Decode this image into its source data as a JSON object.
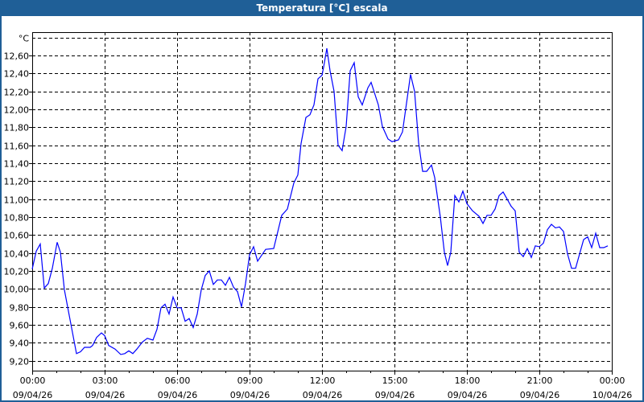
{
  "window": {
    "title": "Temperatura [°C] escala"
  },
  "colors": {
    "titlebar": "#1f5f97",
    "series": "#0000ff",
    "grid": "#000000"
  },
  "chart_data": {
    "type": "line",
    "title": "Temperatura [°C] escala",
    "ylabel": "°C",
    "ylim": [
      9.09,
      12.86
    ],
    "yticks": [
      "9,20",
      "9,40",
      "9,60",
      "9,80",
      "10,00",
      "10,20",
      "10,40",
      "10,60",
      "10,80",
      "11,00",
      "11,20",
      "11,40",
      "11,60",
      "11,80",
      "12,00",
      "12,20",
      "12,40",
      "12,60"
    ],
    "ytick_values": [
      9.2,
      9.4,
      9.6,
      9.8,
      10.0,
      10.2,
      10.4,
      10.6,
      10.8,
      11.0,
      11.2,
      11.4,
      11.6,
      11.8,
      12.0,
      12.2,
      12.4,
      12.6
    ],
    "unit_gridline_value": 12.8,
    "xlim": [
      "09/04/26 00:00",
      "10/04/26 00:00"
    ],
    "xticks": [
      {
        "time": "00:00",
        "date": "09/04/26"
      },
      {
        "time": "03:00",
        "date": "09/04/26"
      },
      {
        "time": "06:00",
        "date": "09/04/26"
      },
      {
        "time": "09:00",
        "date": "09/04/26"
      },
      {
        "time": "12:00",
        "date": "09/04/26"
      },
      {
        "time": "15:00",
        "date": "09/04/26"
      },
      {
        "time": "18:00",
        "date": "09/04/26"
      },
      {
        "time": "21:00",
        "date": "09/04/26"
      },
      {
        "time": "00:00",
        "date": "10/04/26"
      }
    ],
    "grid": true,
    "series": [
      {
        "color": "#0000ff",
        "points": [
          [
            "00:00",
            10.22
          ],
          [
            "00:10",
            10.42
          ],
          [
            "00:20",
            10.5
          ],
          [
            "00:30",
            10.01
          ],
          [
            "00:40",
            10.06
          ],
          [
            "00:50",
            10.23
          ],
          [
            "01:02",
            10.52
          ],
          [
            "01:10",
            10.41
          ],
          [
            "01:20",
            9.99
          ],
          [
            "01:50",
            9.28
          ],
          [
            "02:00",
            9.3
          ],
          [
            "02:10",
            9.35
          ],
          [
            "02:24",
            9.35
          ],
          [
            "02:30",
            9.37
          ],
          [
            "02:40",
            9.46
          ],
          [
            "02:52",
            9.51
          ],
          [
            "03:00",
            9.48
          ],
          [
            "03:10",
            9.37
          ],
          [
            "03:26",
            9.33
          ],
          [
            "03:40",
            9.27
          ],
          [
            "03:50",
            9.28
          ],
          [
            "04:00",
            9.31
          ],
          [
            "04:10",
            9.28
          ],
          [
            "04:20",
            9.33
          ],
          [
            "04:34",
            9.41
          ],
          [
            "04:46",
            9.45
          ],
          [
            "05:00",
            9.43
          ],
          [
            "05:10",
            9.55
          ],
          [
            "05:20",
            9.79
          ],
          [
            "05:30",
            9.83
          ],
          [
            "05:40",
            9.72
          ],
          [
            "05:50",
            9.91
          ],
          [
            "06:00",
            9.79
          ],
          [
            "06:10",
            9.79
          ],
          [
            "06:20",
            9.64
          ],
          [
            "06:30",
            9.67
          ],
          [
            "06:40",
            9.57
          ],
          [
            "06:50",
            9.72
          ],
          [
            "07:00",
            9.99
          ],
          [
            "07:10",
            10.15
          ],
          [
            "07:20",
            10.2
          ],
          [
            "07:30",
            10.05
          ],
          [
            "07:40",
            10.1
          ],
          [
            "07:50",
            10.1
          ],
          [
            "08:00",
            10.04
          ],
          [
            "08:10",
            10.13
          ],
          [
            "08:20",
            10.02
          ],
          [
            "08:30",
            9.97
          ],
          [
            "08:40",
            9.8
          ],
          [
            "08:50",
            10.06
          ],
          [
            "09:00",
            10.38
          ],
          [
            "09:10",
            10.47
          ],
          [
            "09:20",
            10.31
          ],
          [
            "09:40",
            10.44
          ],
          [
            "10:00",
            10.45
          ],
          [
            "10:20",
            10.82
          ],
          [
            "10:34",
            10.89
          ],
          [
            "10:50",
            11.18
          ],
          [
            "11:00",
            11.27
          ],
          [
            "11:08",
            11.62
          ],
          [
            "11:20",
            11.91
          ],
          [
            "11:30",
            11.94
          ],
          [
            "11:40",
            12.05
          ],
          [
            "11:50",
            12.34
          ],
          [
            "12:00",
            12.38
          ],
          [
            "12:04",
            12.47
          ],
          [
            "12:12",
            12.68
          ],
          [
            "12:20",
            12.43
          ],
          [
            "12:30",
            12.2
          ],
          [
            "12:40",
            11.6
          ],
          [
            "12:50",
            11.54
          ],
          [
            "13:00",
            11.81
          ],
          [
            "13:10",
            12.43
          ],
          [
            "13:20",
            12.52
          ],
          [
            "13:30",
            12.14
          ],
          [
            "13:40",
            12.05
          ],
          [
            "13:54",
            12.24
          ],
          [
            "14:02",
            12.3
          ],
          [
            "14:20",
            12.05
          ],
          [
            "14:30",
            11.81
          ],
          [
            "14:44",
            11.67
          ],
          [
            "14:54",
            11.64
          ],
          [
            "15:10",
            11.66
          ],
          [
            "15:20",
            11.75
          ],
          [
            "15:40",
            12.39
          ],
          [
            "15:50",
            12.2
          ],
          [
            "16:00",
            11.63
          ],
          [
            "16:10",
            11.31
          ],
          [
            "16:20",
            11.31
          ],
          [
            "16:32",
            11.38
          ],
          [
            "16:40",
            11.24
          ],
          [
            "16:54",
            10.8
          ],
          [
            "17:04",
            10.41
          ],
          [
            "17:12",
            10.26
          ],
          [
            "17:20",
            10.41
          ],
          [
            "17:30",
            11.04
          ],
          [
            "17:40",
            10.97
          ],
          [
            "17:50",
            11.09
          ],
          [
            "18:00",
            10.95
          ],
          [
            "18:14",
            10.87
          ],
          [
            "18:30",
            10.81
          ],
          [
            "18:40",
            10.73
          ],
          [
            "18:50",
            10.82
          ],
          [
            "19:00",
            10.82
          ],
          [
            "19:10",
            10.89
          ],
          [
            "19:20",
            11.04
          ],
          [
            "19:30",
            11.08
          ],
          [
            "19:50",
            10.92
          ],
          [
            "20:00",
            10.87
          ],
          [
            "20:10",
            10.41
          ],
          [
            "20:20",
            10.36
          ],
          [
            "20:30",
            10.45
          ],
          [
            "20:40",
            10.35
          ],
          [
            "20:50",
            10.48
          ],
          [
            "21:00",
            10.47
          ],
          [
            "21:10",
            10.51
          ],
          [
            "21:20",
            10.66
          ],
          [
            "21:30",
            10.72
          ],
          [
            "21:40",
            10.68
          ],
          [
            "21:50",
            10.69
          ],
          [
            "22:00",
            10.64
          ],
          [
            "22:10",
            10.39
          ],
          [
            "22:20",
            10.23
          ],
          [
            "22:30",
            10.23
          ],
          [
            "22:40",
            10.39
          ],
          [
            "22:50",
            10.55
          ],
          [
            "23:00",
            10.58
          ],
          [
            "23:10",
            10.46
          ],
          [
            "23:20",
            10.62
          ],
          [
            "23:30",
            10.46
          ],
          [
            "23:40",
            10.46
          ],
          [
            "23:50",
            10.48
          ]
        ]
      }
    ]
  }
}
